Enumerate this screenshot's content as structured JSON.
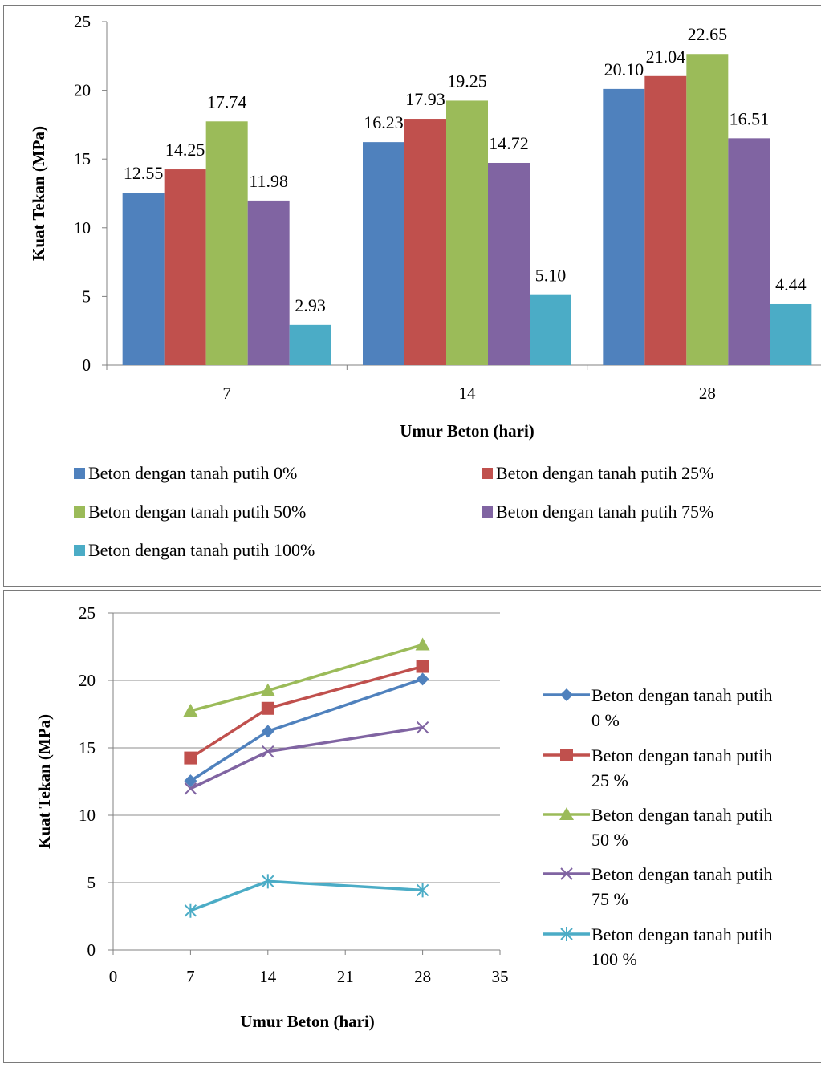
{
  "chart_data": [
    {
      "type": "bar",
      "categories": [
        "7",
        "14",
        "28"
      ],
      "series": [
        {
          "name": "Beton dengan tanah putih 0%",
          "values": [
            12.55,
            16.23,
            20.1
          ],
          "labels": [
            "12.55",
            "16.23",
            "20.10"
          ],
          "color": "#4F81BD"
        },
        {
          "name": "Beton dengan tanah putih 25%",
          "values": [
            14.25,
            17.93,
            21.04
          ],
          "labels": [
            "14.25",
            "17.93",
            "21.04"
          ],
          "color": "#C0504D"
        },
        {
          "name": "Beton dengan tanah putih 50%",
          "values": [
            17.74,
            19.25,
            22.65
          ],
          "labels": [
            "17.74",
            "19.25",
            "22.65"
          ],
          "color": "#9BBB59"
        },
        {
          "name": "Beton dengan tanah putih 75%",
          "values": [
            11.98,
            14.72,
            16.51
          ],
          "labels": [
            "11.98",
            "14.72",
            "16.51"
          ],
          "color": "#8064A2"
        },
        {
          "name": "Beton dengan tanah putih 100%",
          "values": [
            2.93,
            5.1,
            4.44
          ],
          "labels": [
            "2.93",
            "5.10",
            "4.44"
          ],
          "color": "#4BACC6"
        }
      ],
      "xlabel": "Umur Beton (hari)",
      "ylabel": "Kuat Tekan (MPa)",
      "ylim": [
        0,
        25
      ],
      "yticks": [
        "0",
        "5",
        "10",
        "15",
        "20",
        "25"
      ],
      "grid": false,
      "legend": "bottom"
    },
    {
      "type": "line",
      "x": [
        7,
        14,
        28
      ],
      "series": [
        {
          "name": "Beton dengan tanah putih 0 %",
          "values": [
            12.55,
            16.23,
            20.1
          ],
          "color": "#4F81BD",
          "marker": "diamond"
        },
        {
          "name": "Beton dengan tanah putih 25 %",
          "values": [
            14.25,
            17.93,
            21.04
          ],
          "color": "#C0504D",
          "marker": "square"
        },
        {
          "name": "Beton dengan tanah putih 50 %",
          "values": [
            17.74,
            19.25,
            22.65
          ],
          "color": "#9BBB59",
          "marker": "triangle"
        },
        {
          "name": "Beton dengan tanah putih 75 %",
          "values": [
            11.98,
            14.72,
            16.51
          ],
          "color": "#8064A2",
          "marker": "x"
        },
        {
          "name": "Beton dengan tanah putih 100 %",
          "values": [
            2.93,
            5.1,
            4.44
          ],
          "color": "#4BACC6",
          "marker": "star"
        }
      ],
      "xlabel": "Umur Beton (hari)",
      "ylabel": "Kuat Tekan (MPa)",
      "xlim": [
        0,
        35
      ],
      "xticks": [
        "0",
        "7",
        "14",
        "21",
        "28",
        "35"
      ],
      "ylim": [
        0,
        25
      ],
      "yticks": [
        "0",
        "5",
        "10",
        "15",
        "20",
        "25"
      ],
      "grid": true,
      "legend": "right"
    }
  ]
}
